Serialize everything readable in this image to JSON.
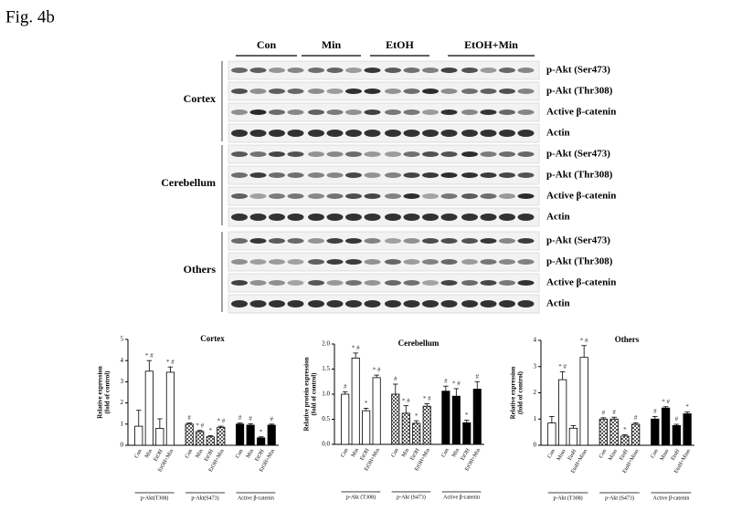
{
  "figure_label": "Fig. 4b",
  "blot": {
    "groups": [
      "Con",
      "Min",
      "EtOH",
      "EtOH+Min"
    ],
    "sections": [
      {
        "label": "Cortex",
        "rows": [
          "p-Akt (Ser473)",
          "p-Akt (Thr308)",
          "Active β-catenin",
          "Actin"
        ]
      },
      {
        "label": "Cerebellum",
        "rows": [
          "p-Akt (Ser473)",
          "p-Akt (Thr308)",
          "Active β-catenin",
          "Actin"
        ]
      },
      {
        "label": "Others",
        "rows": [
          "p-Akt (Ser473)",
          "p-Akt (Thr308)",
          "Active β-catenin",
          "Actin"
        ]
      }
    ]
  },
  "chart_data": [
    {
      "type": "bar",
      "title": "Cortex",
      "y_label": [
        "Relative expression",
        "(fold of control)"
      ],
      "ylim": [
        0,
        5
      ],
      "yticks": [
        0,
        1,
        2,
        3,
        4,
        5
      ],
      "categories": [
        "Con",
        "Min",
        "EtOH",
        "EtOH+Min",
        "Con",
        "Min",
        "EtOH",
        "EtOH+Min",
        "Con",
        "Min",
        "EtOH",
        "EtOH+Min"
      ],
      "groups": [
        {
          "label": "p-Akt(T308)",
          "color": "#ffffff"
        },
        {
          "label": "p-Akt(S473)",
          "color": "#8c8c8c",
          "pattern": "checker"
        },
        {
          "label": "Active β-catenin",
          "color": "#000000"
        }
      ],
      "values": [
        0.9,
        3.5,
        0.8,
        3.45,
        1.0,
        0.65,
        0.4,
        0.85,
        1.0,
        0.95,
        0.35,
        0.95
      ],
      "errors": [
        0.75,
        0.5,
        0.45,
        0.25,
        0.05,
        0.05,
        0.05,
        0.05,
        0.05,
        0.07,
        0.05,
        0.05
      ],
      "annotations": [
        {
          "index": 1,
          "text": "* #"
        },
        {
          "index": 3,
          "text": "* #"
        },
        {
          "index": 4,
          "text": "#"
        },
        {
          "index": 5,
          "text": "* #"
        },
        {
          "index": 6,
          "text": "*"
        },
        {
          "index": 7,
          "text": "* #"
        },
        {
          "index": 8,
          "text": "#"
        },
        {
          "index": 9,
          "text": "#"
        },
        {
          "index": 10,
          "text": "*"
        },
        {
          "index": 11,
          "text": "#"
        }
      ]
    },
    {
      "type": "bar",
      "title": "Cerebellum",
      "y_label": [
        "Relative protein expression",
        "(fold of control)"
      ],
      "ylim": [
        0,
        2
      ],
      "yticks": [
        {
          "value": 0,
          "label": "0.0"
        },
        {
          "value": 0.5,
          "label": "0.5"
        },
        {
          "value": 1,
          "label": "1.0"
        },
        {
          "value": 1.5,
          "label": "1.5"
        },
        {
          "value": 2,
          "label": "2.0"
        }
      ],
      "categories": [
        "Con",
        "Min",
        "EtOH",
        "EtOH+Min",
        "Con",
        "Min",
        "EtOH",
        "EtOH+Min",
        "Con",
        "Min",
        "EtOH",
        "EtOH+Min"
      ],
      "groups": [
        {
          "label": "p-Akt (T308)",
          "color": "#ffffff"
        },
        {
          "label": "p-Akt (S473)",
          "color": "#8c8c8c",
          "pattern": "checker"
        },
        {
          "label": "Active β-catenin",
          "color": "#000000"
        }
      ],
      "values": [
        1.0,
        1.72,
        0.67,
        1.33,
        1.0,
        0.62,
        0.42,
        0.76,
        1.06,
        0.96,
        0.43,
        1.1
      ],
      "errors": [
        0.05,
        0.1,
        0.05,
        0.05,
        0.2,
        0.15,
        0.05,
        0.05,
        0.1,
        0.15,
        0.05,
        0.15
      ],
      "annotations": [
        {
          "index": 0,
          "text": "#"
        },
        {
          "index": 1,
          "text": "* #"
        },
        {
          "index": 2,
          "text": "*"
        },
        {
          "index": 3,
          "text": "* #"
        },
        {
          "index": 4,
          "text": "#"
        },
        {
          "index": 5,
          "text": "* #"
        },
        {
          "index": 6,
          "text": "*"
        },
        {
          "index": 7,
          "text": "* #"
        },
        {
          "index": 8,
          "text": "#"
        },
        {
          "index": 9,
          "text": "* #"
        },
        {
          "index": 10,
          "text": "*"
        },
        {
          "index": 11,
          "text": "#"
        }
      ]
    },
    {
      "type": "bar",
      "title": "Others",
      "y_label": [
        "Relative expression",
        "(fold of control)"
      ],
      "ylim": [
        0,
        4
      ],
      "yticks": [
        0,
        1,
        2,
        3,
        4
      ],
      "categories": [
        "Con",
        "Mino",
        "EtoH",
        "EtoH+Mino",
        "Con",
        "Mino",
        "EtoH",
        "EtoH+Mino",
        "Con",
        "Mino",
        "EtoH",
        "EtoH+Mino"
      ],
      "groups": [
        {
          "label": "p-Akt (T308)",
          "color": "#ffffff"
        },
        {
          "label": "p-Akt (S473)",
          "color": "#8c8c8c",
          "pattern": "checker"
        },
        {
          "label": "Active β-catenin",
          "color": "#000000"
        }
      ],
      "values": [
        0.85,
        2.5,
        0.65,
        3.35,
        1.0,
        1.0,
        0.35,
        0.8,
        1.0,
        1.42,
        0.75,
        1.2
      ],
      "errors": [
        0.25,
        0.3,
        0.1,
        0.45,
        0.05,
        0.07,
        0.05,
        0.05,
        0.1,
        0.05,
        0.05,
        0.07
      ],
      "annotations": [
        {
          "index": 1,
          "text": "* #"
        },
        {
          "index": 3,
          "text": "* #"
        },
        {
          "index": 4,
          "text": "#"
        },
        {
          "index": 5,
          "text": "#"
        },
        {
          "index": 6,
          "text": "*"
        },
        {
          "index": 7,
          "text": "#"
        },
        {
          "index": 8,
          "text": "#"
        },
        {
          "index": 9,
          "text": "* #"
        },
        {
          "index": 10,
          "text": "#"
        },
        {
          "index": 11,
          "text": "*"
        }
      ]
    }
  ]
}
